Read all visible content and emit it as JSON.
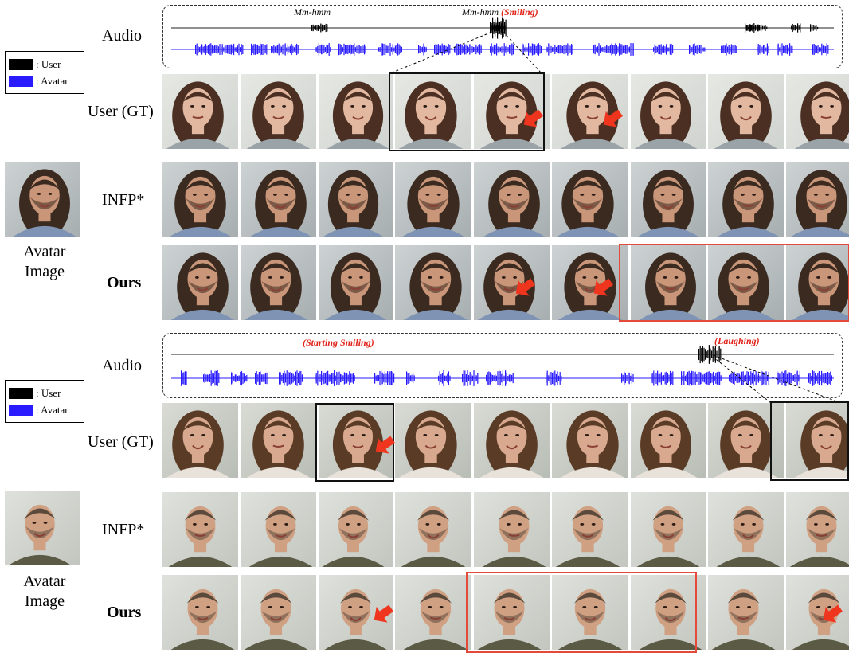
{
  "legend": {
    "user_label": ": User",
    "avatar_label": ": Avatar",
    "user_color": "#000000",
    "avatar_color": "#2a1bff"
  },
  "example1": {
    "audio_label": "Audio",
    "annotations": [
      {
        "text": "Mm-hmm",
        "tag": ""
      },
      {
        "text": "Mm-hmm",
        "tag": "(Smiling)"
      }
    ],
    "rows": [
      {
        "label": "User (GT)",
        "bold": false
      },
      {
        "label": "INFP*",
        "bold": false
      },
      {
        "label": "Ours",
        "bold": true
      }
    ],
    "avatar_caption_line1": "Avatar",
    "avatar_caption_line2": "Image"
  },
  "example2": {
    "audio_label": "Audio",
    "annotations": [
      {
        "text": "",
        "tag": "(Starting Smiling)"
      },
      {
        "text": "",
        "tag": "(Laughing)"
      }
    ],
    "rows": [
      {
        "label": "User (GT)",
        "bold": false
      },
      {
        "label": "INFP*",
        "bold": false
      },
      {
        "label": "Ours",
        "bold": true
      }
    ],
    "avatar_caption_line1": "Avatar",
    "avatar_caption_line2": "Image"
  },
  "colors": {
    "highlight_red": "#e34a3a",
    "arrow_red": "#f0351f",
    "annotation_red": "#e1251b"
  }
}
